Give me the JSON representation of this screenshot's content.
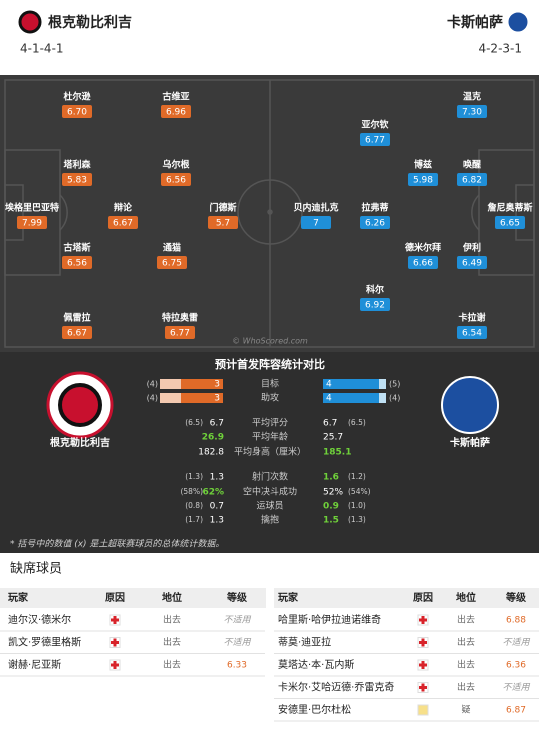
{
  "header": {
    "home": {
      "name": "根克勒比利吉",
      "formation": "4-1-4-1"
    },
    "away": {
      "name": "卡斯帕萨",
      "formation": "4-2-3-1"
    }
  },
  "pitch": {
    "watermark": "© WhoScored.com",
    "home_players": [
      {
        "name": "杜尔逊",
        "rating": "6.70"
      },
      {
        "name": "古维亚",
        "rating": "6.96"
      },
      {
        "name": "塔利森",
        "rating": "5.83"
      },
      {
        "name": "乌尔根",
        "rating": "6.56"
      },
      {
        "name": "埃格里巴亚特",
        "rating": "7.99"
      },
      {
        "name": "辩论",
        "rating": "6.67"
      },
      {
        "name": "门德斯",
        "rating": "5.7"
      },
      {
        "name": "古塔斯",
        "rating": "6.56"
      },
      {
        "name": "通猫",
        "rating": "6.75"
      },
      {
        "name": "佩雷拉",
        "rating": "6.67"
      },
      {
        "name": "特拉奥雷",
        "rating": "6.77"
      }
    ],
    "away_players": [
      {
        "name": "温克",
        "rating": "7.30"
      },
      {
        "name": "亚尔钦",
        "rating": "6.77"
      },
      {
        "name": "博兹",
        "rating": "5.98"
      },
      {
        "name": "唤醒",
        "rating": "6.82"
      },
      {
        "name": "詹尼奥蒂斯",
        "rating": "6.65"
      },
      {
        "name": "贝内迪扎克",
        "rating": "7"
      },
      {
        "name": "拉弗蒂",
        "rating": "6.26"
      },
      {
        "name": "德米尔拜",
        "rating": "6.66"
      },
      {
        "name": "伊利",
        "rating": "6.49"
      },
      {
        "name": "科尔",
        "rating": "6.92"
      },
      {
        "name": "卡拉谢",
        "rating": "6.54"
      }
    ]
  },
  "stats": {
    "title": "预计首发阵容统计对比",
    "home_name": "根克勒比利吉",
    "away_name": "卡斯帕萨",
    "bars": [
      {
        "label": "目标",
        "home": 3,
        "home_league": "(4)",
        "away": 4,
        "away_league": "(5)"
      },
      {
        "label": "助攻",
        "home": 3,
        "home_league": "(4)",
        "away": 4,
        "away_league": "(4)"
      }
    ],
    "rows": [
      {
        "label": "平均评分",
        "home": "6.7",
        "home_league": "(6.5)",
        "away": "6.7",
        "away_league": "(6.5)",
        "highlight": "none"
      },
      {
        "label": "平均年龄",
        "home": "26.9",
        "away": "25.7",
        "highlight": "home"
      },
      {
        "label": "平均身高（厘米）",
        "home": "182.8",
        "away": "185.1",
        "highlight": "away"
      },
      {
        "label": "射门次数",
        "home": "1.3",
        "home_league": "(1.3)",
        "away": "1.6",
        "away_league": "(1.2)",
        "highlight": "away"
      },
      {
        "label": "空中决斗成功",
        "home": "62%",
        "home_league": "(58%)",
        "away": "52%",
        "away_league": "(54%)",
        "highlight": "home"
      },
      {
        "label": "运球员",
        "home": "0.7",
        "home_league": "(0.8)",
        "away": "0.9",
        "away_league": "(1.0)",
        "highlight": "away"
      },
      {
        "label": "擒抱",
        "home": "1.3",
        "home_league": "(1.7)",
        "away": "1.5",
        "away_league": "(1.3)",
        "highlight": "away"
      }
    ],
    "footnote": "* 括号中的数值 (x) 是土超联赛球员的总体统计数据。"
  },
  "absent": {
    "title": "缺席球员",
    "headers": [
      "玩家",
      "原因",
      "地位",
      "等级"
    ],
    "home": [
      {
        "player": "迪尔汉·德米尔",
        "status": "出去",
        "rating": "不适用"
      },
      {
        "player": "凯文·罗德里格斯",
        "status": "出去",
        "rating": "不适用"
      },
      {
        "player": "谢赫·尼亚斯",
        "status": "出去",
        "rating": "6.33"
      }
    ],
    "away": [
      {
        "player": "哈里斯·哈伊拉迪诺维奇",
        "status": "出去",
        "rating": "6.88"
      },
      {
        "player": "蒂莫·迪亚拉",
        "status": "出去",
        "rating": "不适用"
      },
      {
        "player": "莫塔达·本·瓦内斯",
        "status": "出去",
        "rating": "6.36"
      },
      {
        "player": "卡米尔·艾哈迈德·乔雷克奇",
        "status": "出去",
        "rating": "不适用"
      },
      {
        "player": "安德里·巴尔杜松",
        "status": "疑",
        "rating": "6.87"
      }
    ]
  }
}
